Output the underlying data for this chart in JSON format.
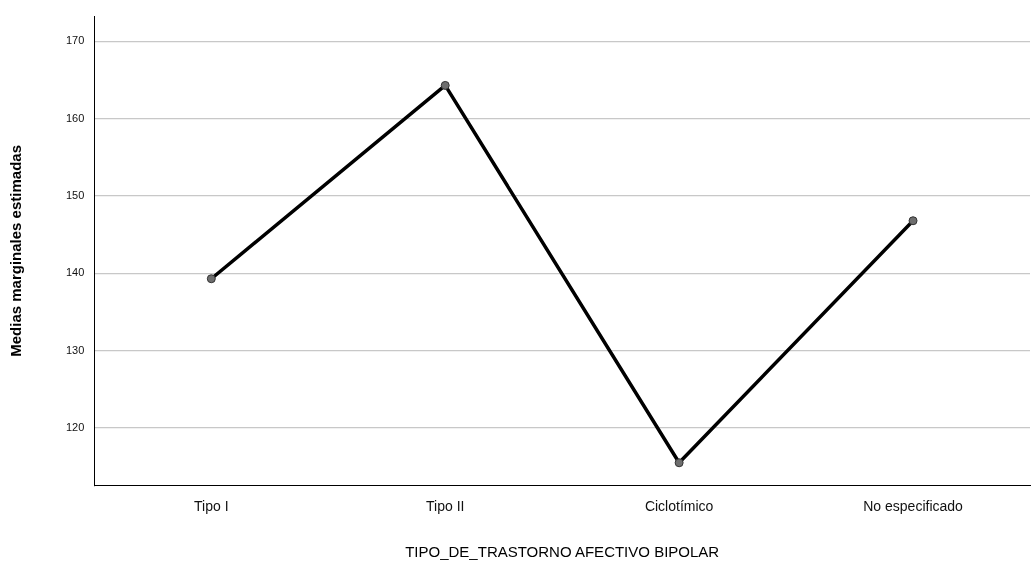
{
  "chart_data": {
    "type": "line",
    "xlabel": "TIPO_DE_TRASTORNO AFECTIVO BIPOLAR",
    "ylabel": "Medias marginales estimadas",
    "categories": [
      "Tipo I",
      "Tipo II",
      "Ciclotímico",
      "No especificado"
    ],
    "series": [
      {
        "color": "#000000",
        "values": [
          139.3,
          164.3,
          115.5,
          146.8
        ]
      }
    ],
    "ylim": [
      112.6,
      173.2
    ],
    "yticks": [
      120,
      130,
      140,
      150,
      160,
      170
    ],
    "grid": "y",
    "legend": false,
    "marker": "circle",
    "line_style": "solid"
  }
}
